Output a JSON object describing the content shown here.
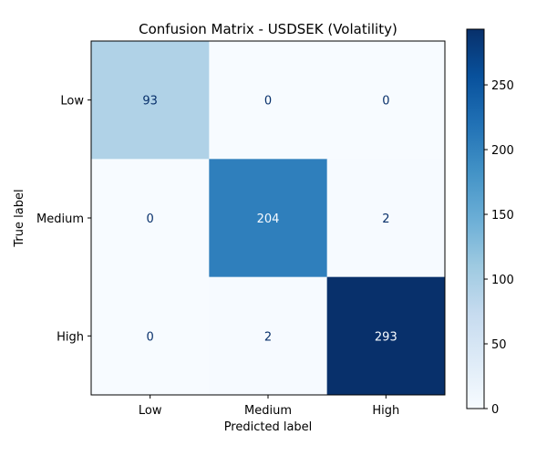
{
  "chart_data": {
    "type": "heatmap",
    "title": "Confusion Matrix - USDSEK (Volatility)",
    "xlabel": "Predicted label",
    "ylabel": "True label",
    "x_categories": [
      "Low",
      "Medium",
      "High"
    ],
    "y_categories": [
      "Low",
      "Medium",
      "High"
    ],
    "matrix": [
      [
        93,
        0,
        0
      ],
      [
        0,
        204,
        2
      ],
      [
        0,
        2,
        293
      ]
    ],
    "colormap": "Blues",
    "colorbar": {
      "min": 0,
      "max": 293,
      "ticks": [
        0,
        50,
        100,
        150,
        200,
        250
      ],
      "tick_labels": [
        "0",
        "50",
        "100",
        "150",
        "200",
        "250"
      ]
    },
    "colors": {
      "low": "#f7fbff",
      "high": "#08306b",
      "text_dark_bg": "#f7fbff",
      "text_light_bg": "#08306b"
    }
  }
}
